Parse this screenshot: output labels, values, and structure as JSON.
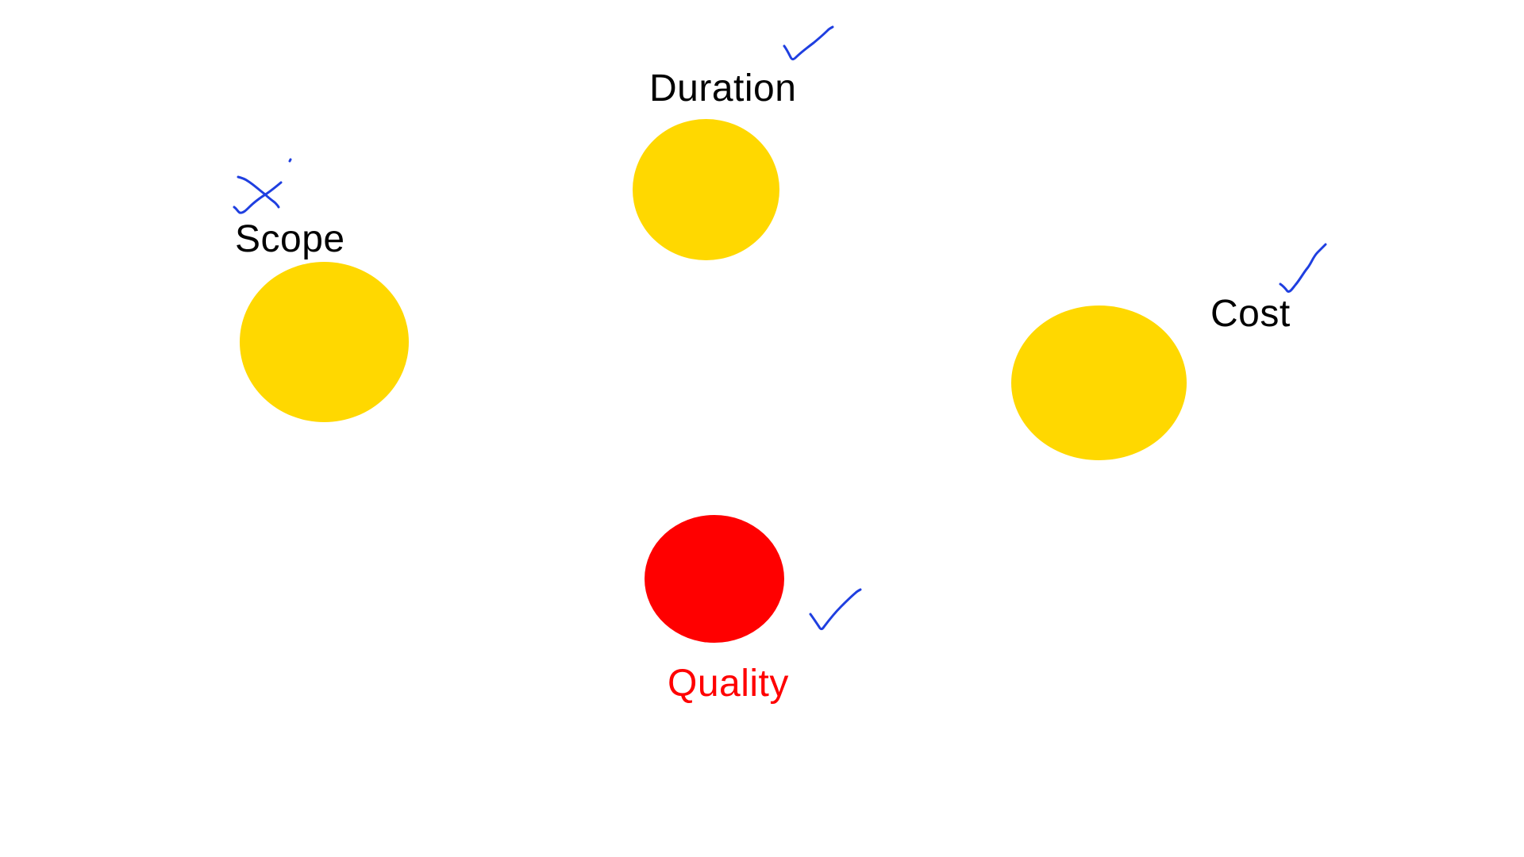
{
  "colors": {
    "yellow": "#FFD800",
    "red": "#FF0000",
    "text": "#000000",
    "quality_text": "#FF0000",
    "ink": "#1F3FE0"
  },
  "nodes": {
    "duration": {
      "label": "Duration",
      "status": "check"
    },
    "scope": {
      "label": "Scope",
      "status": "cross"
    },
    "cost": {
      "label": "Cost",
      "status": "check"
    },
    "quality": {
      "label": "Quality",
      "status": "check"
    }
  }
}
